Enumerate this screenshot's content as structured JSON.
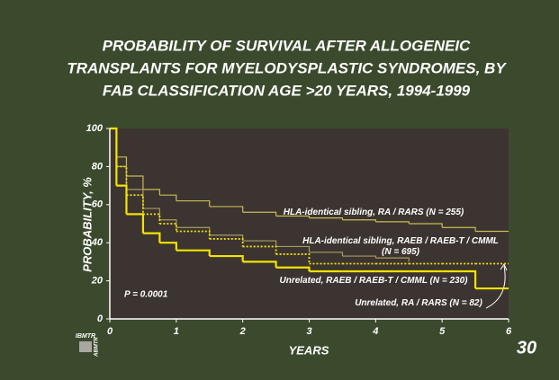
{
  "chart_data": {
    "type": "line",
    "title": [
      "PROBABILITY OF SURVIVAL AFTER ALLOGENEIC",
      "TRANSPLANTS FOR MYELODYSPLASTIC SYNDROMES, BY",
      "FAB CLASSIFICATION AGE >20 YEARS, 1994-1999"
    ],
    "x_label": "YEARS",
    "y_label": "PROBABILITY, %",
    "annotation": "P = 0.0001",
    "slide_number": "30",
    "logo": [
      "IBMTR",
      "ABMTR"
    ],
    "step": true,
    "x": [
      0,
      0.1,
      0.25,
      0.5,
      0.75,
      1,
      1.5,
      2,
      2.5,
      3,
      3.5,
      4,
      4.5,
      5,
      5.5,
      6
    ],
    "series": [
      {
        "name": "HLA-identical sibling, RA / RARS (N = 255)",
        "color": "#c9ba55",
        "line_width": 1.2,
        "dashed": false,
        "values": [
          100,
          85,
          75,
          68,
          65,
          62,
          59,
          56,
          54,
          53,
          52,
          51,
          50,
          48,
          46,
          46
        ]
      },
      {
        "name": "HLA-identical sibling, RAEB / RAEB-T / CMML (N = 695)",
        "color": "#a89a63",
        "line_width": 1.2,
        "dashed": false,
        "values": [
          100,
          80,
          68,
          58,
          52,
          48,
          44,
          41,
          38,
          35,
          33,
          32,
          30,
          null,
          null,
          null
        ]
      },
      {
        "name": "Unrelated, RAEB / RAEB-T / CMML (N = 230)",
        "color": "#f2e300",
        "line_width": 2.2,
        "dashed": false,
        "values": [
          100,
          70,
          55,
          45,
          40,
          36,
          33,
          30,
          27,
          25,
          25,
          25,
          25,
          25,
          16,
          16
        ]
      },
      {
        "name": "Unrelated, RA / RARS (N = 82)",
        "color": "#f2e300",
        "line_width": 1.8,
        "dashed": true,
        "values": [
          100,
          80,
          65,
          55,
          50,
          46,
          42,
          38,
          34,
          29,
          29,
          29,
          29,
          29,
          29,
          29
        ]
      }
    ],
    "xlim": [
      0,
      6
    ],
    "xticks": [
      0,
      1,
      2,
      3,
      4,
      5,
      6
    ],
    "ylim": [
      0,
      100
    ],
    "yticks": [
      0,
      20,
      40,
      60,
      80,
      100
    ]
  }
}
